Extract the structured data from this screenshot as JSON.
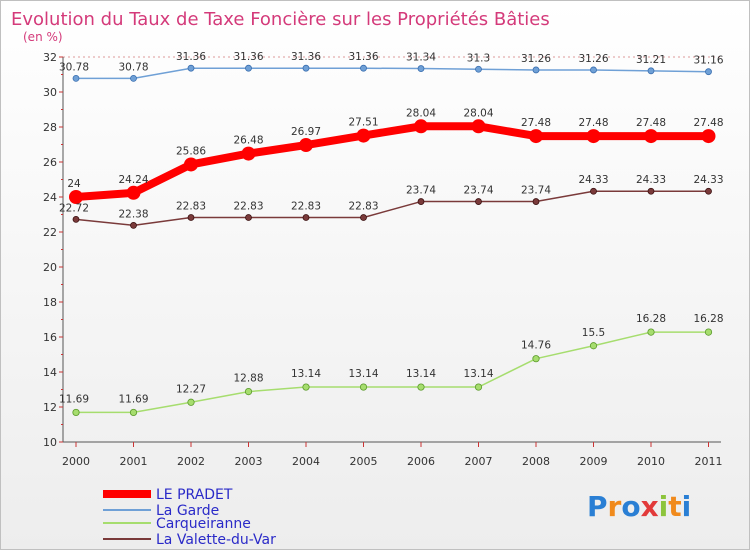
{
  "chart_data": {
    "type": "line",
    "title": "Evolution du Taux de Taxe Foncière sur les Propriétés Bâties",
    "ylabel": "(en %)",
    "xlabel": "",
    "ylim": [
      10,
      32
    ],
    "grid": false,
    "legend_position": "bottom-left",
    "categories": [
      "2000",
      "2001",
      "2002",
      "2003",
      "2004",
      "2005",
      "2006",
      "2007",
      "2008",
      "2009",
      "2010",
      "2011"
    ],
    "y_ticks": [
      10,
      12,
      14,
      16,
      18,
      20,
      22,
      24,
      26,
      28,
      30,
      32
    ],
    "series": [
      {
        "name": "LE PRADET",
        "color": "#ff0000",
        "values": [
          24,
          24.24,
          25.86,
          26.48,
          26.97,
          27.51,
          28.04,
          28.04,
          27.48,
          27.48,
          27.48,
          27.48
        ],
        "labels": [
          "24",
          "24.24",
          "25.86",
          "26.48",
          "26.97",
          "27.51",
          "28.04",
          "28.04",
          "27.48",
          "27.48",
          "27.48",
          "27.48"
        ]
      },
      {
        "name": "La Garde",
        "color": "#6fa0d6",
        "values": [
          30.78,
          30.78,
          31.36,
          31.36,
          31.36,
          31.36,
          31.34,
          31.3,
          31.26,
          31.26,
          31.21,
          31.16
        ],
        "labels": [
          "30.78",
          "30.78",
          "31.36",
          "31.36",
          "31.36",
          "31.36",
          "31.34",
          "31.3",
          "31.26",
          "31.26",
          "31.21",
          "31.16"
        ]
      },
      {
        "name": "Carqueiranne",
        "color": "#a6dd6e",
        "values": [
          11.69,
          11.69,
          12.27,
          12.88,
          13.14,
          13.14,
          13.14,
          13.14,
          14.76,
          15.5,
          16.28,
          16.28
        ],
        "labels": [
          "11.69",
          "11.69",
          "12.27",
          "12.88",
          "13.14",
          "13.14",
          "13.14",
          "13.14",
          "14.76",
          "15.5",
          "16.28",
          "16.28"
        ]
      },
      {
        "name": "La Valette-du-Var",
        "color": "#7a3a3a",
        "values": [
          22.72,
          22.38,
          22.83,
          22.83,
          22.83,
          22.83,
          23.74,
          23.74,
          23.74,
          24.33,
          24.33,
          24.33
        ],
        "labels": [
          "22.72",
          "22.38",
          "22.83",
          "22.83",
          "22.83",
          "22.83",
          "23.74",
          "23.74",
          "23.74",
          "24.33",
          "24.33",
          "24.33"
        ]
      }
    ]
  },
  "logo": {
    "text": "Proxiti",
    "letters": [
      "P",
      "r",
      "o",
      "x",
      "i",
      "t",
      "i"
    ],
    "colors": [
      "#2a7fd4",
      "#f08a1c",
      "#2a7fd4",
      "#e23a3a",
      "#8cc43c",
      "#f08a1c",
      "#2a7fd4"
    ]
  }
}
